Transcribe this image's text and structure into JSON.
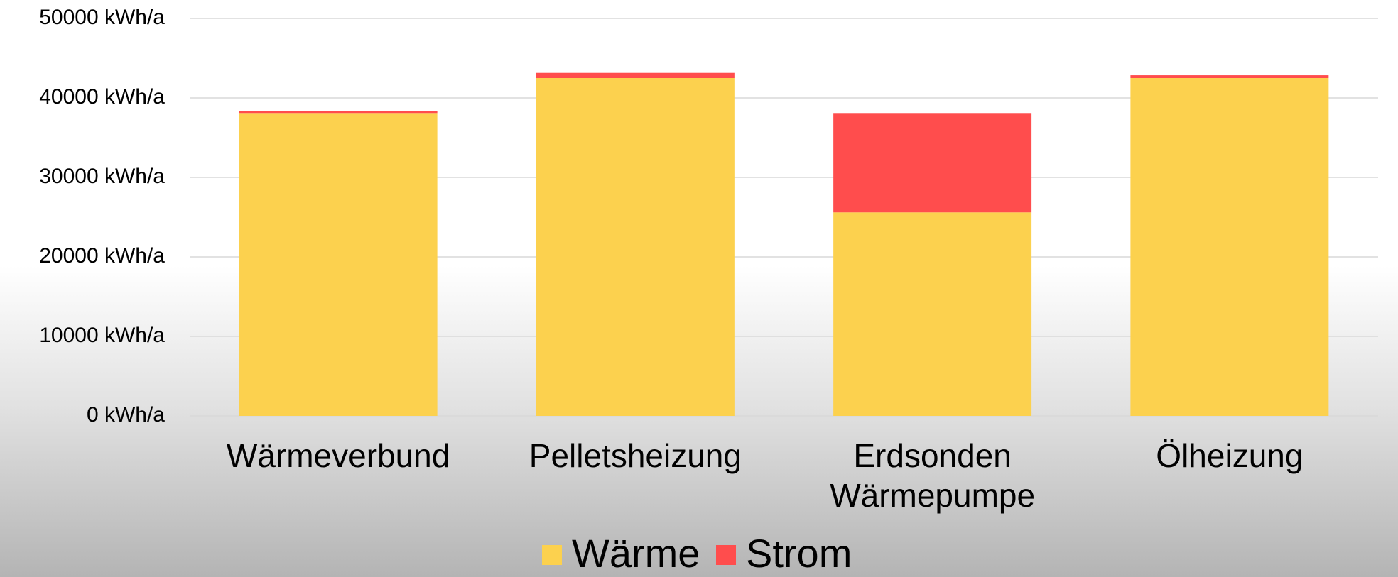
{
  "chart_data": {
    "type": "stacked_bar",
    "categories": [
      "Wärmeverbund",
      "Pelletsheizung",
      "Erdsonden Wärmepumpe",
      "Ölheizung"
    ],
    "series": [
      {
        "name": "Wärme",
        "color": "#fcd14e",
        "values": [
          38100,
          42500,
          25600,
          42500
        ]
      },
      {
        "name": "Strom",
        "color": "#ff4d4d",
        "values": [
          250,
          650,
          12500,
          350
        ]
      }
    ],
    "ylim": [
      0,
      50000
    ],
    "yticks": [
      {
        "value": 0,
        "label": "0 kWh/a"
      },
      {
        "value": 10000,
        "label": "10000 kWh/a"
      },
      {
        "value": 20000,
        "label": "20000 kWh/a"
      },
      {
        "value": 30000,
        "label": "30000 kWh/a"
      },
      {
        "value": 40000,
        "label": "40000 kWh/a"
      },
      {
        "value": 50000,
        "label": "50000 kWh/a"
      }
    ],
    "grid": true,
    "legend": "bottom"
  }
}
